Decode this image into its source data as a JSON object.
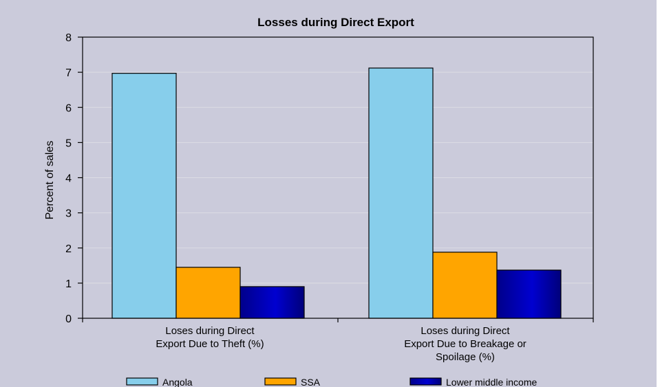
{
  "chart_data": {
    "type": "bar",
    "title": "Losses during Direct Export",
    "ylabel": "Percent of sales",
    "xlabel": "",
    "ylim": [
      0,
      8
    ],
    "yticks": [
      0,
      1,
      2,
      3,
      4,
      5,
      6,
      7,
      8
    ],
    "grid": true,
    "legend_position": "bottom",
    "categories": [
      [
        "Loses during Direct",
        "Export Due to Theft (%)"
      ],
      [
        "Loses during Direct",
        "Export Due to Breakage or",
        "Spoilage (%)"
      ]
    ],
    "series": [
      {
        "name": "Angola",
        "values": [
          6.97,
          7.12
        ],
        "color": "#87ceeb"
      },
      {
        "name": "SSA",
        "values": [
          1.45,
          1.88
        ],
        "color": "#ffa500"
      },
      {
        "name": "Lower middle income",
        "values": [
          0.9,
          1.37
        ],
        "color": "#0000a8"
      }
    ],
    "colors": {
      "background": "#cbcbdb",
      "plot_area": "#cbcbdb",
      "gridline": "#dcdce4",
      "axis": "#000000"
    }
  }
}
